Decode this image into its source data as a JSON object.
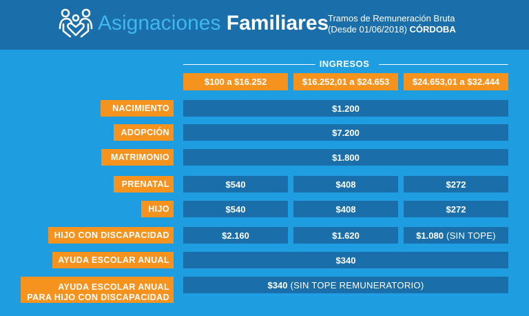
{
  "header": {
    "brand_light": "Asignaciones",
    "brand_bold": "Familiares",
    "subtitle_line1": "Tramos de Remuneración Bruta",
    "subtitle_line2_prefix": "(Desde 01/06/2018)",
    "subtitle_line2_bold": "CÓRDOBA",
    "logo_icon": "family-icon"
  },
  "ingresos_label": "INGRESOS",
  "ranges": [
    "$100 a $16.252",
    "$16.252,01 a $24.653",
    "$24.653,01 a $32.444"
  ],
  "rows": {
    "nacimiento": {
      "label": "NACIMIENTO",
      "value": "$1.200"
    },
    "adopcion": {
      "label": "ADOPCIÓN",
      "value": "$7.200"
    },
    "matrimonio": {
      "label": "MATRIMONIO",
      "value": "$1.800"
    },
    "prenatal": {
      "label": "PRENATAL",
      "values": [
        "$540",
        "$408",
        "$272"
      ]
    },
    "hijo": {
      "label": "HIJO",
      "values": [
        "$540",
        "$408",
        "$272"
      ]
    },
    "hijo_discapacidad": {
      "label": "HIJO CON DISCAPACIDAD",
      "values": [
        "$2.160",
        "$1.620",
        "$1.080"
      ],
      "note": "(SIN TOPE)"
    },
    "ayuda_escolar": {
      "label": "AYUDA ESCOLAR ANUAL",
      "value": "$340"
    },
    "ayuda_escolar_disc": {
      "label_line1": "AYUDA ESCOLAR ANUAL",
      "label_line2": "PARA HIJO CON DISCAPACIDAD",
      "value": "$340",
      "note": "(SIN TOPE REMUNERATORIO)"
    }
  },
  "colors": {
    "header_bg": "#1a6ea9",
    "page_bg": "#1e9ee0",
    "orange": "#f6921e",
    "cell_bg": "#1a6ea9"
  }
}
